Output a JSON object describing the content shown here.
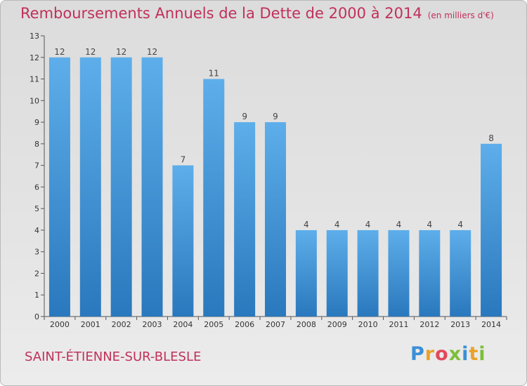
{
  "header": {
    "title": "Remboursements Annuels de la Dette de 2000 à 2014",
    "subtitle": "(en milliers d'€)"
  },
  "footer": {
    "commune": "SAINT-ÉTIENNE-SUR-BLESLE",
    "logo": "Proxiti"
  },
  "colors": {
    "bar_light": "#5daeea",
    "bar_dark": "#2a78bd",
    "title": "#c0305a"
  },
  "chart_data": {
    "type": "bar",
    "title": "Remboursements Annuels de la Dette de 2000 à 2014",
    "subtitle": "(en milliers d'€)",
    "categories": [
      "2000",
      "2001",
      "2002",
      "2003",
      "2004",
      "2005",
      "2006",
      "2007",
      "2008",
      "2009",
      "2010",
      "2011",
      "2012",
      "2013",
      "2014"
    ],
    "values": [
      12,
      12,
      12,
      12,
      7,
      11,
      9,
      9,
      4,
      4,
      4,
      4,
      4,
      4,
      8
    ],
    "y_ticks": [
      "0",
      "1",
      "2",
      "3",
      "4",
      "5",
      "6",
      "7",
      "8",
      "9",
      "10",
      "11",
      "12",
      "13"
    ],
    "ylim": [
      0,
      13
    ],
    "grid": false,
    "legend": "none"
  }
}
